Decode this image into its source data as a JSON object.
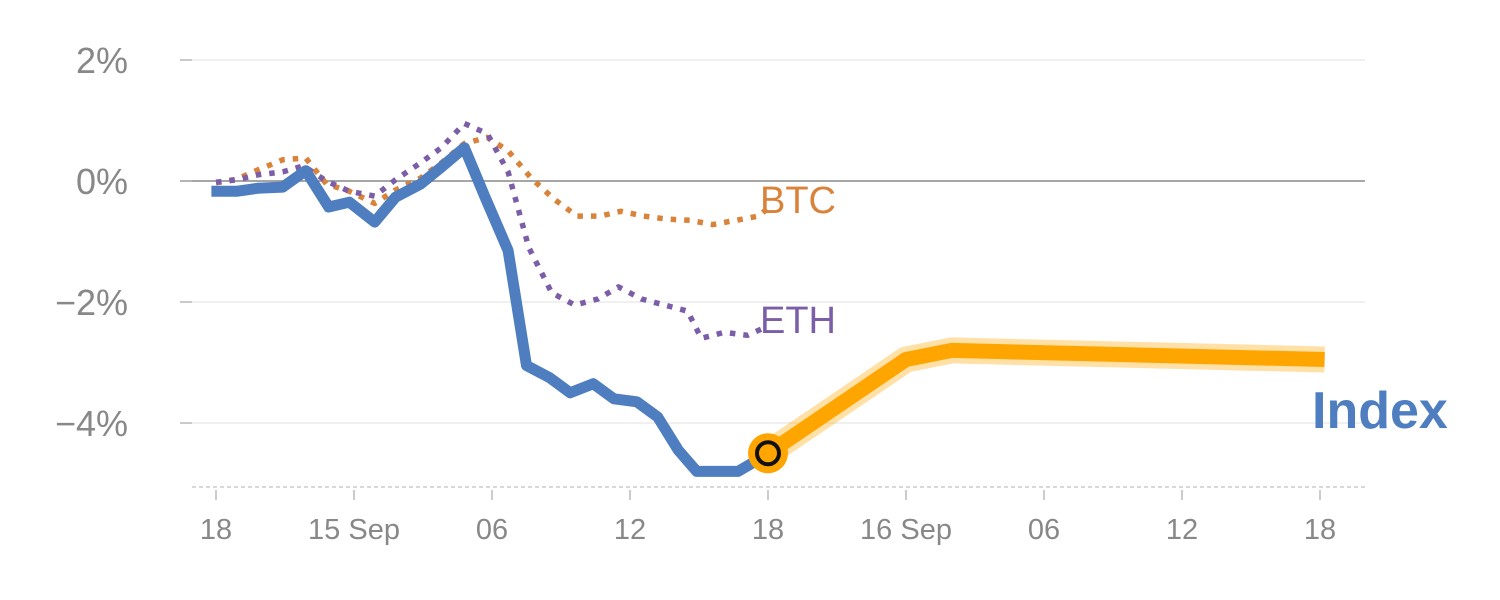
{
  "chart_data": {
    "type": "line",
    "title": "",
    "xlabel": "",
    "ylabel": "",
    "ylim": [
      -5.1,
      2.3
    ],
    "y_ticks": [
      {
        "value": 2,
        "label": "2%"
      },
      {
        "value": 0,
        "label": "0%"
      },
      {
        "value": -2,
        "label": "−2%"
      },
      {
        "value": -4,
        "label": "−4%"
      }
    ],
    "x_ticks": [
      {
        "x": 0,
        "label": "18"
      },
      {
        "x": 6,
        "label": "15 Sep"
      },
      {
        "x": 12,
        "label": "06"
      },
      {
        "x": 18,
        "label": "12"
      },
      {
        "x": 24,
        "label": "18"
      },
      {
        "x": 30,
        "label": "16 Sep"
      },
      {
        "x": 36,
        "label": "06"
      },
      {
        "x": 42,
        "label": "12"
      },
      {
        "x": 48,
        "label": "18"
      }
    ],
    "series": [
      {
        "name": "Index",
        "color": "#4e7ebf",
        "style": "solid",
        "x": [
          -0.2,
          0.9,
          1.8,
          2.9,
          3.9,
          4.9,
          5.8,
          6.9,
          7.8,
          8.9,
          9.8,
          10.8,
          11.7,
          12.7,
          13.5,
          14.5,
          15.4,
          16.4,
          17.3,
          18.3,
          19.2,
          20.1,
          20.9,
          21.8,
          22.7,
          23.6,
          24
        ],
        "y": [
          -0.17,
          -0.17,
          -0.12,
          -0.1,
          0.17,
          -0.43,
          -0.35,
          -0.68,
          -0.27,
          -0.05,
          0.23,
          0.55,
          -0.27,
          -1.15,
          -3.05,
          -3.25,
          -3.5,
          -3.35,
          -3.6,
          -3.65,
          -3.9,
          -4.45,
          -4.8,
          -4.8,
          -4.8,
          -4.6,
          -4.5
        ]
      },
      {
        "name": "BTC",
        "color": "#d9823a",
        "style": "dotted",
        "x": [
          0,
          0.9,
          1.8,
          2.9,
          3.9,
          4.8,
          5.8,
          6.9,
          7.8,
          8.9,
          9.8,
          10.8,
          11.8,
          12.7,
          13.7,
          14.7,
          15.7,
          16.7,
          17.6,
          18.6,
          19.6,
          20.6,
          21.6,
          22.6,
          23.6,
          24
        ],
        "y": [
          -0.03,
          0.03,
          0.18,
          0.35,
          0.38,
          -0.05,
          -0.17,
          -0.37,
          -0.15,
          0.05,
          0.3,
          0.62,
          0.72,
          0.5,
          0.05,
          -0.3,
          -0.58,
          -0.58,
          -0.5,
          -0.58,
          -0.63,
          -0.65,
          -0.72,
          -0.65,
          -0.58,
          -0.45
        ]
      },
      {
        "name": "ETH",
        "color": "#7b5ea7",
        "style": "dotted",
        "x": [
          0,
          0.9,
          1.8,
          2.9,
          3.8,
          4.8,
          5.8,
          6.9,
          7.8,
          8.9,
          9.8,
          10.8,
          11.8,
          12.7,
          13.6,
          14.6,
          15.6,
          16.6,
          17.5,
          18.5,
          19.5,
          20.5,
          21.1,
          22.1,
          23.1,
          24
        ],
        "y": [
          -0.02,
          0.02,
          0.1,
          0.15,
          0.25,
          0.0,
          -0.17,
          -0.25,
          0.02,
          0.3,
          0.55,
          0.95,
          0.78,
          0.15,
          -1.1,
          -1.85,
          -2.05,
          -1.95,
          -1.75,
          -1.95,
          -2.05,
          -2.15,
          -2.6,
          -2.5,
          -2.55,
          -2.4
        ]
      },
      {
        "name": "",
        "color": "#ffa500",
        "style": "forecast",
        "x": [
          24,
          30,
          32,
          48.2
        ],
        "y": [
          -4.5,
          -2.95,
          -2.8,
          -2.95
        ]
      }
    ],
    "series_labels": {
      "btc": "BTC",
      "eth": "ETH",
      "index": "Index"
    },
    "colors": {
      "btc": "#d9823a",
      "eth": "#7b5ea7",
      "index": "#4e7ebf",
      "forecast": "#ffa500"
    },
    "marker": {
      "x": 24,
      "y": -4.5
    },
    "grid": true
  }
}
